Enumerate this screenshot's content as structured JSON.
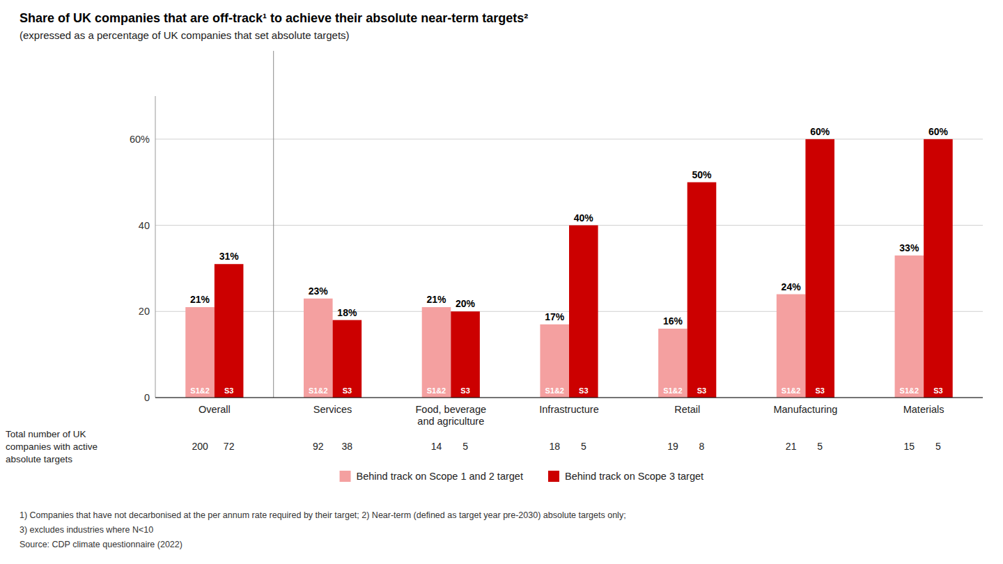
{
  "chart_data": {
    "type": "bar",
    "title": "Share of UK companies that are off-track¹ to achieve their absolute near-term targets²",
    "subtitle": "(expressed as a percentage of UK companies that set absolute targets)",
    "categories": [
      "Overall",
      "Services",
      "Food, beverage\nand agriculture",
      "Infrastructure",
      "Retail",
      "Manufacturing",
      "Materials"
    ],
    "series": [
      {
        "name": "Behind track on Scope 1 and 2 target",
        "short_name": "S1&2",
        "color": "#F4A0A0",
        "values": [
          21,
          23,
          21,
          17,
          16,
          24,
          33
        ],
        "value_labels": [
          "21%",
          "23%",
          "21%",
          "17%",
          "16%",
          "24%",
          "33%"
        ],
        "n": [
          200,
          92,
          14,
          18,
          19,
          21,
          15
        ]
      },
      {
        "name": "Behind track on Scope 3 target",
        "short_name": "S3",
        "color": "#CC0000",
        "values": [
          31,
          18,
          20,
          40,
          50,
          60,
          60
        ],
        "value_labels": [
          "31%",
          "18%",
          "20%",
          "40%",
          "50%",
          "60%",
          "60%"
        ],
        "n": [
          72,
          38,
          5,
          5,
          8,
          5,
          5
        ]
      }
    ],
    "ylim": [
      0,
      70
    ],
    "yticks": [
      0,
      20,
      40,
      {
        "value": 60,
        "label": "60%"
      }
    ],
    "grid": true,
    "data_labels": true,
    "legend": "bottom",
    "table_label": [
      "Total number of UK",
      "companies with active",
      "absolute targets"
    ],
    "footnotes": [
      "1) Companies that have not decarbonised at the per annum rate required by their target; 2) Near-term (defined as target year pre-2030) absolute targets only;",
      "3) excludes industries where N<10",
      "Source: CDP climate questionnaire (2022)"
    ]
  }
}
